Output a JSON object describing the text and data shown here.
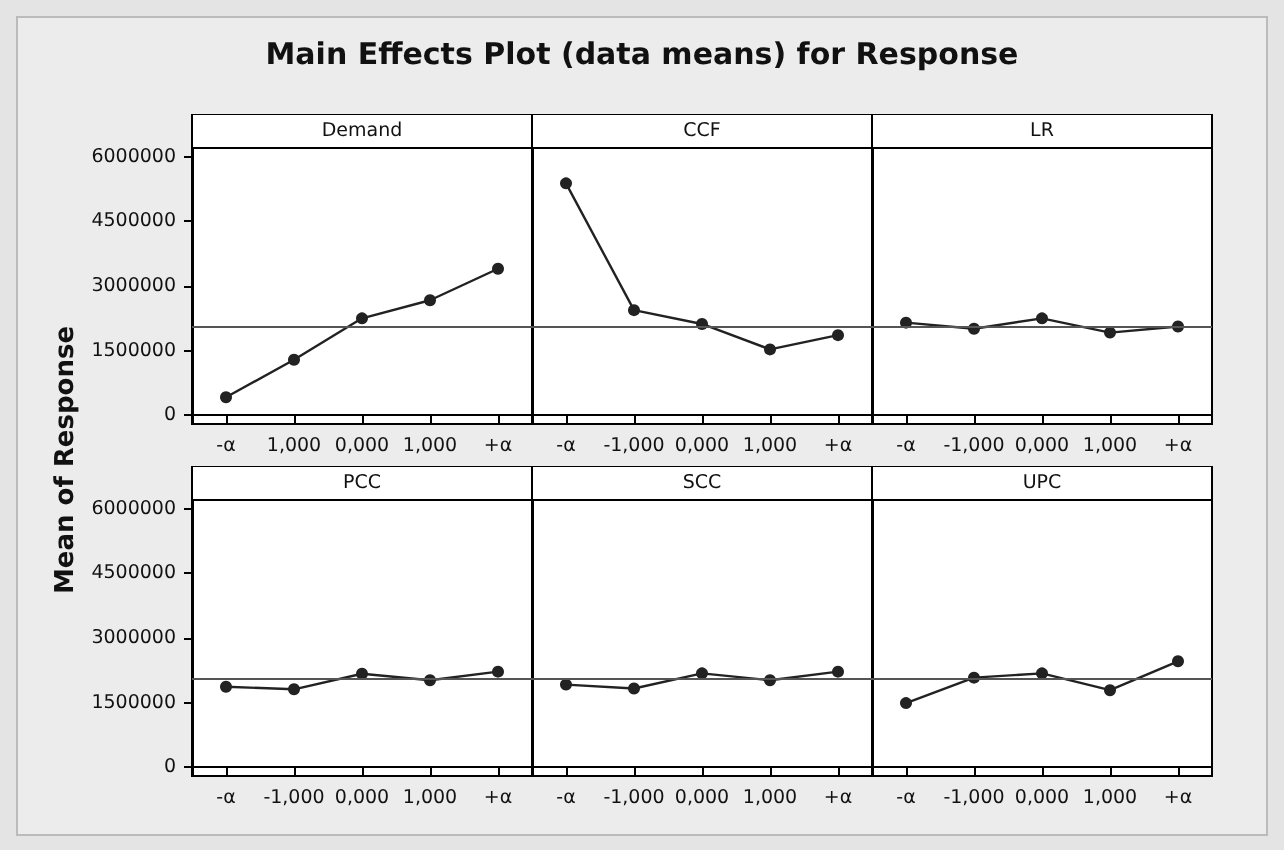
{
  "chart_data": [
    {
      "type": "line",
      "title": "Demand",
      "annotations": [
        "Main Effects Plot (data means) for Response"
      ],
      "ylabel": "Mean of Response",
      "categories": [
        "-α",
        "1,000",
        "0,000",
        "1,000",
        "+α"
      ],
      "values": [
        420000,
        1290000,
        2250000,
        2670000,
        3400000
      ],
      "color": "#222222",
      "marker": "circle",
      "ylim": [
        -200000,
        6200000
      ],
      "yticks": [
        0,
        1500000,
        3000000,
        4500000,
        6000000
      ],
      "ref_lines": [
        {
          "axis": "y",
          "value": 2050000,
          "color": "#555555"
        }
      ]
    },
    {
      "type": "line",
      "title": "CCF",
      "categories": [
        "-α",
        "-1,000",
        "0,000",
        "1,000",
        "+α"
      ],
      "values": [
        5380000,
        2440000,
        2120000,
        1530000,
        1860000
      ],
      "color": "#222222",
      "marker": "circle",
      "ylim": [
        -200000,
        6200000
      ],
      "yticks": [
        0,
        1500000,
        3000000,
        4500000,
        6000000
      ],
      "tick_labels": "x",
      "ref_lines": [
        {
          "axis": "y",
          "value": 2050000,
          "color": "#555555"
        }
      ]
    },
    {
      "type": "line",
      "title": "LR",
      "categories": [
        "-α",
        "-1,000",
        "0,000",
        "1,000",
        "+α"
      ],
      "values": [
        2150000,
        2010000,
        2250000,
        1920000,
        2060000
      ],
      "color": "#222222",
      "marker": "circle",
      "ylim": [
        -200000,
        6200000
      ],
      "yticks": [
        0,
        1500000,
        3000000,
        4500000,
        6000000
      ],
      "tick_labels": "x",
      "ref_lines": [
        {
          "axis": "y",
          "value": 2050000,
          "color": "#555555"
        }
      ]
    },
    {
      "type": "line",
      "title": "PCC",
      "categories": [
        "-α",
        "-1,000",
        "0,000",
        "1,000",
        "+α"
      ],
      "values": [
        1870000,
        1810000,
        2170000,
        2020000,
        2220000
      ],
      "color": "#222222",
      "marker": "circle",
      "ylim": [
        -200000,
        6200000
      ],
      "yticks": [
        0,
        1500000,
        3000000,
        4500000,
        6000000
      ],
      "ref_lines": [
        {
          "axis": "y",
          "value": 2050000,
          "color": "#555555"
        }
      ]
    },
    {
      "type": "line",
      "title": "SCC",
      "categories": [
        "-α",
        "-1,000",
        "0,000",
        "1,000",
        "+α"
      ],
      "values": [
        1920000,
        1830000,
        2180000,
        2020000,
        2220000
      ],
      "color": "#222222",
      "marker": "circle",
      "ylim": [
        -200000,
        6200000
      ],
      "yticks": [
        0,
        1500000,
        3000000,
        4500000,
        6000000
      ],
      "tick_labels": "x",
      "ref_lines": [
        {
          "axis": "y",
          "value": 2050000,
          "color": "#555555"
        }
      ]
    },
    {
      "type": "line",
      "title": "UPC",
      "categories": [
        "-α",
        "-1,000",
        "0,000",
        "1,000",
        "+α"
      ],
      "values": [
        1490000,
        2080000,
        2180000,
        1790000,
        2460000
      ],
      "color": "#222222",
      "marker": "circle",
      "ylim": [
        -200000,
        6200000
      ],
      "yticks": [
        0,
        1500000,
        3000000,
        4500000,
        6000000
      ],
      "tick_labels": "x",
      "ref_lines": [
        {
          "axis": "y",
          "value": 2050000,
          "color": "#555555"
        }
      ]
    }
  ]
}
